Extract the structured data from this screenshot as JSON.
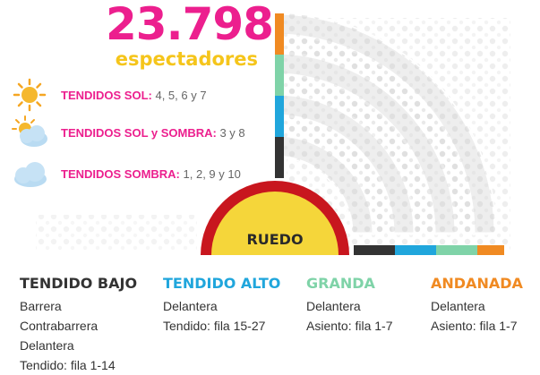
{
  "total": {
    "number": "23.798",
    "label": "espectadores"
  },
  "legend": [
    {
      "icon": "sun-icon",
      "key": "TENDIDOS SOL:",
      "value": "4, 5, 6 y 7"
    },
    {
      "icon": "sun-cloud-icon",
      "key": "TENDIDOS SOL y SOMBRA:",
      "value": "3 y 8"
    },
    {
      "icon": "cloud-icon",
      "key": "TENDIDOS SOMBRA:",
      "value": "1, 2, 9 y 10"
    }
  ],
  "ring_label": "RUEDO",
  "sections": [
    {
      "title": "TENDIDO BAJO",
      "color": "#333333",
      "lines": [
        "Barrera",
        "Contrabarrera",
        "Delantera",
        "Tendido: fila 1-14"
      ]
    },
    {
      "title": "TENDIDO ALTO",
      "color": "#20a6dc",
      "lines": [
        "Delantera",
        "Tendido: fila 15-27"
      ]
    },
    {
      "title": "GRANDA",
      "color": "#7fd3a8",
      "lines": [
        "Delantera",
        "Asiento: fila 1-7"
      ]
    },
    {
      "title": "ANDANADA",
      "color": "#f08a22",
      "lines": [
        "Delantera",
        "Asiento: fila 1-7"
      ]
    }
  ],
  "colors": {
    "pink": "#ec1f8e",
    "yellow": "#f5c51b",
    "ruedo_fill": "#f5d63a",
    "ruedo_border": "#c8161e",
    "ring_gray": "#ececec",
    "band_dark": "#333333",
    "band_blue": "#20a6dc",
    "band_green": "#7fd3a8",
    "band_orange": "#f08a22"
  }
}
